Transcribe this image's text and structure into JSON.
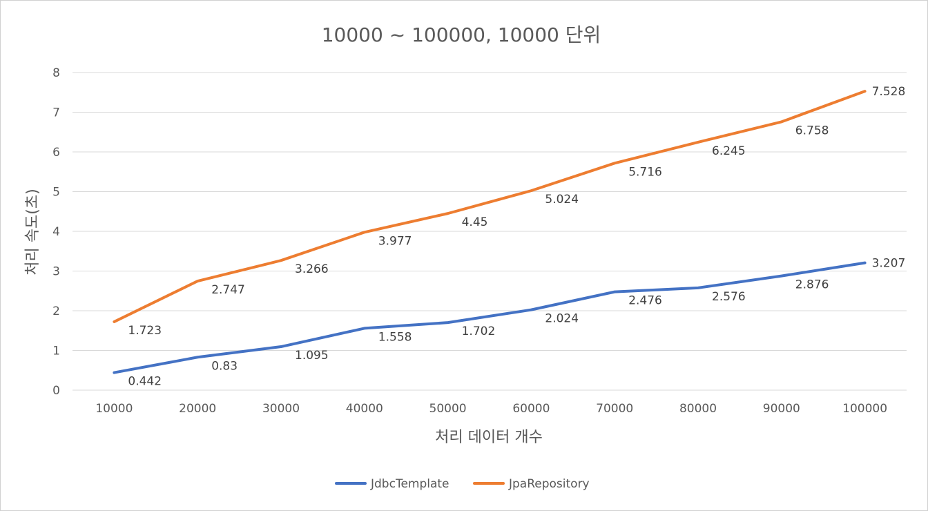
{
  "chart_data": {
    "type": "line",
    "title": "10000 ~ 100000, 10000 단위",
    "xlabel": "처리 데이터 개수",
    "ylabel": "처리 속도(초)",
    "categories": [
      "10000",
      "20000",
      "30000",
      "40000",
      "50000",
      "60000",
      "70000",
      "80000",
      "90000",
      "100000"
    ],
    "ylim": [
      0,
      8
    ],
    "yticks": [
      0,
      1,
      2,
      3,
      4,
      5,
      6,
      7,
      8
    ],
    "grid": true,
    "legend_position": "bottom",
    "series": [
      {
        "name": "JdbcTemplate",
        "color": "#4472C4",
        "values": [
          0.442,
          0.83,
          1.095,
          1.558,
          1.702,
          2.024,
          2.476,
          2.576,
          2.876,
          3.207
        ],
        "labels": [
          "0.442",
          "0.83",
          "1.095",
          "1.558",
          "1.702",
          "2.024",
          "2.476",
          "2.576",
          "2.876",
          "3.207"
        ]
      },
      {
        "name": "JpaRepository",
        "color": "#ED7D31",
        "values": [
          1.723,
          2.747,
          3.266,
          3.977,
          4.45,
          5.024,
          5.716,
          6.245,
          6.758,
          7.528
        ],
        "labels": [
          "1.723",
          "2.747",
          "3.266",
          "3.977",
          "4.45",
          "5.024",
          "5.716",
          "6.245",
          "6.758",
          "7.528"
        ]
      }
    ]
  }
}
